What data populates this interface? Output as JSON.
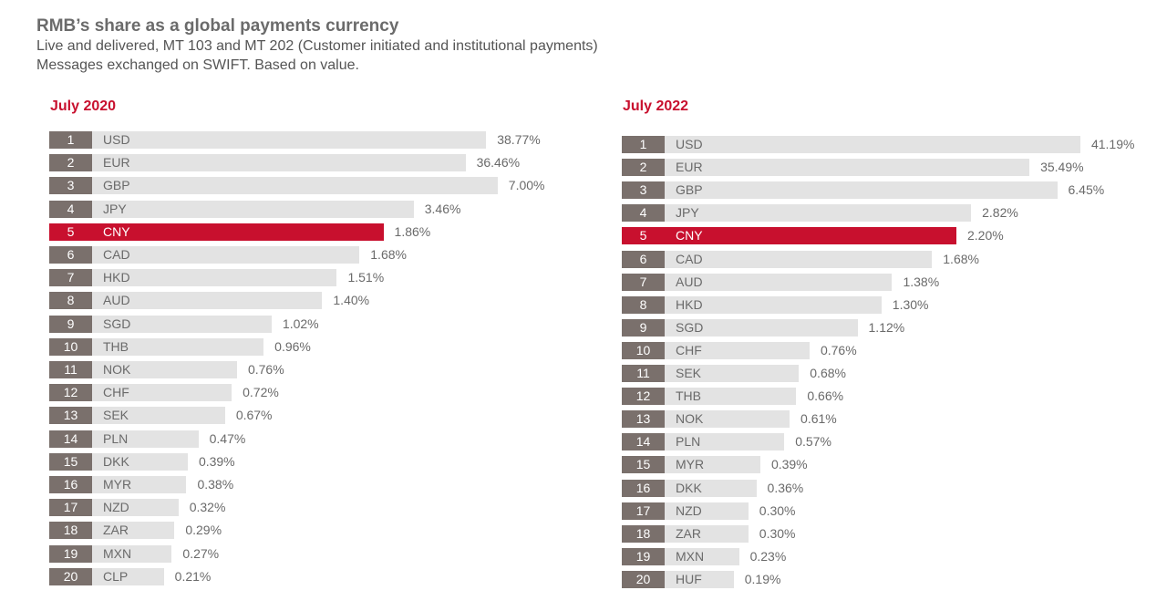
{
  "header": {
    "title": "RMB’s share as a global payments  currency",
    "subtitle1": "Live and delivered,  MT 103 and MT 202 (Customer initiated and institutional payments)",
    "subtitle2": "Messages exchanged on SWIFT. Based on value."
  },
  "colors": {
    "highlight": "#c8102e",
    "bar": "#e3e3e3",
    "rank": "#7a706c",
    "rank_highlight": "#c8102e"
  },
  "chart_data": [
    {
      "type": "bar",
      "title": "July 2020",
      "highlight": "CNY",
      "xlim": [
        0,
        100
      ],
      "items": [
        {
          "rank": "1",
          "code": "USD",
          "value": 38.77,
          "label": "38.77%"
        },
        {
          "rank": "2",
          "code": "EUR",
          "value": 36.46,
          "label": "36.46%"
        },
        {
          "rank": "3",
          "code": "GBP",
          "value": 7.0,
          "label": "7.00%"
        },
        {
          "rank": "4",
          "code": "JPY",
          "value": 3.46,
          "label": "3.46%"
        },
        {
          "rank": "5",
          "code": "CNY",
          "value": 1.86,
          "label": "1.86%"
        },
        {
          "rank": "6",
          "code": "CAD",
          "value": 1.68,
          "label": "1.68%"
        },
        {
          "rank": "7",
          "code": "HKD",
          "value": 1.51,
          "label": "1.51%"
        },
        {
          "rank": "8",
          "code": "AUD",
          "value": 1.4,
          "label": "1.40%"
        },
        {
          "rank": "9",
          "code": "SGD",
          "value": 1.02,
          "label": "1.02%"
        },
        {
          "rank": "10",
          "code": "THB",
          "value": 0.96,
          "label": "0.96%"
        },
        {
          "rank": "11",
          "code": "NOK",
          "value": 0.76,
          "label": "0.76%"
        },
        {
          "rank": "12",
          "code": "CHF",
          "value": 0.72,
          "label": "0.72%"
        },
        {
          "rank": "13",
          "code": "SEK",
          "value": 0.67,
          "label": "0.67%"
        },
        {
          "rank": "14",
          "code": "PLN",
          "value": 0.47,
          "label": "0.47%"
        },
        {
          "rank": "15",
          "code": "DKK",
          "value": 0.39,
          "label": "0.39%"
        },
        {
          "rank": "16",
          "code": "MYR",
          "value": 0.38,
          "label": "0.38%"
        },
        {
          "rank": "17",
          "code": "NZD",
          "value": 0.32,
          "label": "0.32%"
        },
        {
          "rank": "18",
          "code": "ZAR",
          "value": 0.29,
          "label": "0.29%"
        },
        {
          "rank": "19",
          "code": "MXN",
          "value": 0.27,
          "label": "0.27%"
        },
        {
          "rank": "20",
          "code": "CLP",
          "value": 0.21,
          "label": "0.21%"
        }
      ]
    },
    {
      "type": "bar",
      "title": "July 2022",
      "highlight": "CNY",
      "xlim": [
        0,
        100
      ],
      "items": [
        {
          "rank": "1",
          "code": "USD",
          "value": 41.19,
          "label": "41.19%"
        },
        {
          "rank": "2",
          "code": "EUR",
          "value": 35.49,
          "label": "35.49%"
        },
        {
          "rank": "3",
          "code": "GBP",
          "value": 6.45,
          "label": "6.45%"
        },
        {
          "rank": "4",
          "code": "JPY",
          "value": 2.82,
          "label": "2.82%"
        },
        {
          "rank": "5",
          "code": "CNY",
          "value": 2.2,
          "label": "2.20%"
        },
        {
          "rank": "6",
          "code": "CAD",
          "value": 1.68,
          "label": "1.68%"
        },
        {
          "rank": "7",
          "code": "AUD",
          "value": 1.38,
          "label": "1.38%"
        },
        {
          "rank": "8",
          "code": "HKD",
          "value": 1.3,
          "label": "1.30%"
        },
        {
          "rank": "9",
          "code": "SGD",
          "value": 1.12,
          "label": "1.12%"
        },
        {
          "rank": "10",
          "code": "CHF",
          "value": 0.76,
          "label": "0.76%"
        },
        {
          "rank": "11",
          "code": "SEK",
          "value": 0.68,
          "label": "0.68%"
        },
        {
          "rank": "12",
          "code": "THB",
          "value": 0.66,
          "label": "0.66%"
        },
        {
          "rank": "13",
          "code": "NOK",
          "value": 0.61,
          "label": "0.61%"
        },
        {
          "rank": "14",
          "code": "PLN",
          "value": 0.57,
          "label": "0.57%"
        },
        {
          "rank": "15",
          "code": "MYR",
          "value": 0.39,
          "label": "0.39%"
        },
        {
          "rank": "16",
          "code": "DKK",
          "value": 0.36,
          "label": "0.36%"
        },
        {
          "rank": "17",
          "code": "NZD",
          "value": 0.3,
          "label": "0.30%"
        },
        {
          "rank": "18",
          "code": "ZAR",
          "value": 0.3,
          "label": "0.30%"
        },
        {
          "rank": "19",
          "code": "MXN",
          "value": 0.23,
          "label": "0.23%"
        },
        {
          "rank": "20",
          "code": "HUF",
          "value": 0.19,
          "label": "0.19%"
        }
      ]
    }
  ]
}
